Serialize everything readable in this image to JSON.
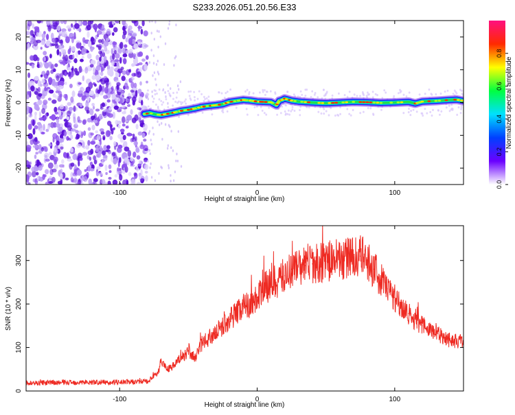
{
  "figure": {
    "title": "S233.2026.051.20.56.E33"
  },
  "chart_data": [
    {
      "type": "heatmap",
      "title": "S233.2026.051.20.56.E33",
      "xlabel": "Height of straight line (km)",
      "ylabel": "Frequency (Hz)",
      "xlim": [
        -168,
        150
      ],
      "ylim": [
        -25,
        25
      ],
      "x_ticks": [
        -100,
        0,
        100
      ],
      "x_tick_labels": [
        "-100",
        "0",
        "100"
      ],
      "y_ticks": [
        -20,
        -10,
        0,
        10,
        20
      ],
      "y_tick_labels": [
        "-20",
        "-10",
        "0",
        "10",
        "20"
      ],
      "noise_region_x_range": [
        -168,
        -80
      ],
      "signal_track": {
        "x": [
          -82,
          -78,
          -74,
          -70,
          -65,
          -60,
          -55,
          -50,
          -45,
          -40,
          -35,
          -30,
          -25,
          -20,
          -15,
          -10,
          -5,
          0,
          5,
          10,
          14,
          16,
          18,
          20,
          25,
          30,
          40,
          50,
          60,
          70,
          80,
          90,
          100,
          110,
          115,
          120,
          130,
          140,
          145,
          150
        ],
        "frequency_hz": [
          -3.5,
          -3.2,
          -3.6,
          -3.8,
          -3.4,
          -3.0,
          -2.5,
          -2.2,
          -1.8,
          -1.3,
          -1.0,
          -0.8,
          -0.5,
          0.2,
          0.5,
          0.8,
          0.6,
          0.3,
          0.2,
          0.1,
          -0.8,
          0.5,
          0.8,
          1.2,
          0.6,
          0.3,
          0.0,
          -0.2,
          0.0,
          0.2,
          0.1,
          -0.1,
          0.0,
          0.2,
          -0.3,
          0.3,
          0.5,
          0.8,
          0.9,
          0.5
        ]
      },
      "colorbar": {
        "label": "Normalized spectral amplitude",
        "range": [
          0,
          1
        ],
        "ticks": [
          0,
          0.2,
          0.4,
          0.6,
          0.8
        ],
        "tick_labels": [
          "0.0",
          "0.2",
          "0.4",
          "0.6",
          "0.8"
        ],
        "colors": [
          "#ffffff",
          "#6a00ff",
          "#0040ff",
          "#00e0ff",
          "#00ff40",
          "#ffff00",
          "#ff2a00",
          "#ff1080"
        ]
      }
    },
    {
      "type": "line",
      "xlabel": "Height of straight line (km)",
      "ylabel": "SNR (10 * v/v)",
      "xlim": [
        -168,
        150
      ],
      "ylim": [
        0,
        380
      ],
      "x_ticks": [
        -100,
        0,
        100
      ],
      "x_tick_labels": [
        "-100",
        "0",
        "100"
      ],
      "y_ticks": [
        0,
        100,
        200,
        300
      ],
      "y_tick_labels": [
        "0",
        "100",
        "200",
        "300"
      ],
      "series": [
        {
          "name": "SNR",
          "color": "#ee2a22",
          "x": [
            -168,
            -150,
            -130,
            -110,
            -90,
            -80,
            -72,
            -70,
            -65,
            -60,
            -55,
            -50,
            -45,
            -40,
            -35,
            -30,
            -25,
            -20,
            -15,
            -10,
            -5,
            0,
            5,
            10,
            15,
            20,
            25,
            30,
            35,
            40,
            45,
            50,
            55,
            60,
            65,
            70,
            75,
            80,
            85,
            90,
            95,
            100,
            105,
            110,
            115,
            120,
            130,
            140,
            150
          ],
          "values": [
            18,
            19,
            20,
            20,
            21,
            22,
            40,
            70,
            50,
            60,
            78,
            90,
            75,
            110,
            120,
            135,
            150,
            165,
            180,
            195,
            200,
            215,
            235,
            245,
            255,
            265,
            280,
            285,
            288,
            292,
            295,
            298,
            300,
            302,
            305,
            308,
            310,
            300,
            280,
            255,
            235,
            215,
            195,
            178,
            165,
            150,
            135,
            118,
            112
          ]
        }
      ]
    }
  ]
}
